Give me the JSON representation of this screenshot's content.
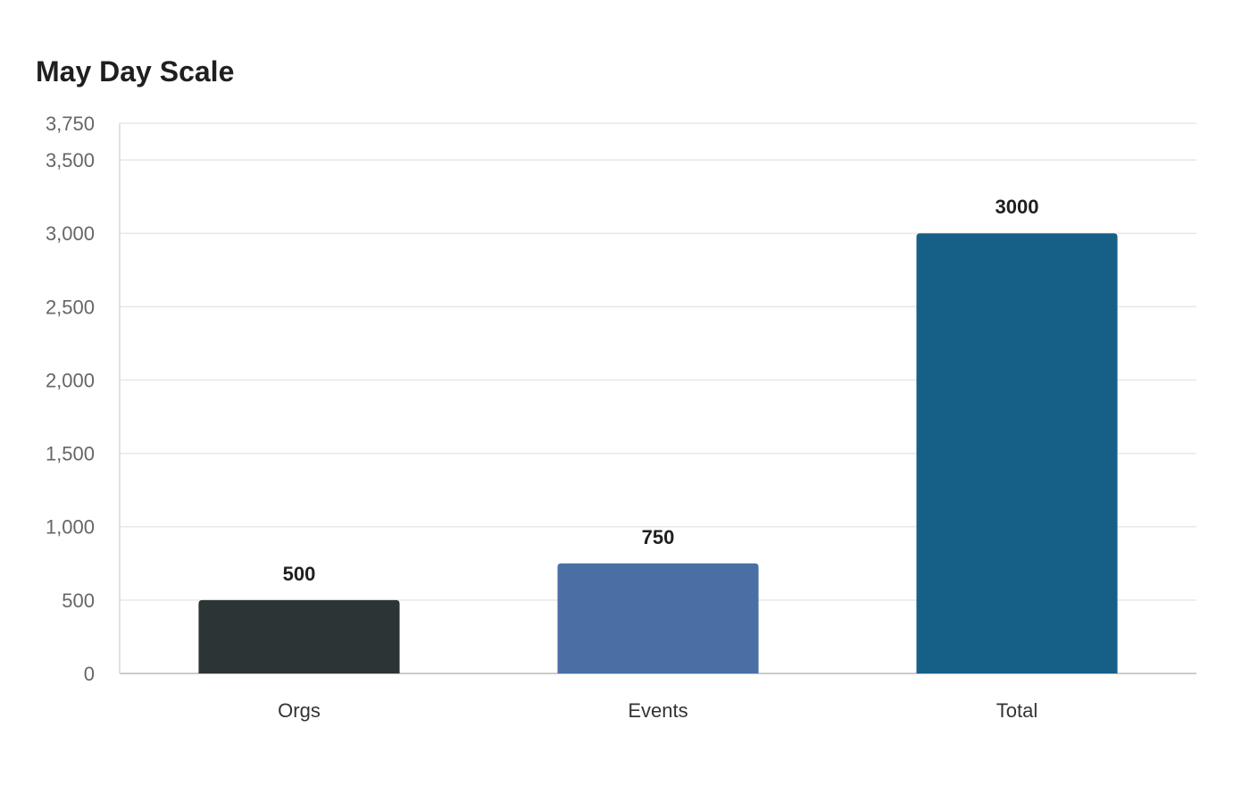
{
  "chart_data": {
    "type": "bar",
    "title": "May Day Scale",
    "xlabel": "",
    "ylabel": "",
    "categories": [
      "Orgs",
      "Events",
      "Total"
    ],
    "values": [
      500,
      750,
      3000
    ],
    "value_labels": [
      "500",
      "750",
      "3000"
    ],
    "colors": [
      "#2d3436",
      "#4a6fa5",
      "#166088"
    ],
    "ylim": [
      0,
      3750
    ],
    "yticks": [
      0,
      500,
      1000,
      1500,
      2000,
      2500,
      3000,
      3500,
      3750
    ],
    "ytick_labels": [
      "0",
      "500",
      "1,000",
      "1,500",
      "2,000",
      "2,500",
      "3,000",
      "3,500",
      "3,750"
    ],
    "grid": true,
    "legend": "none"
  }
}
